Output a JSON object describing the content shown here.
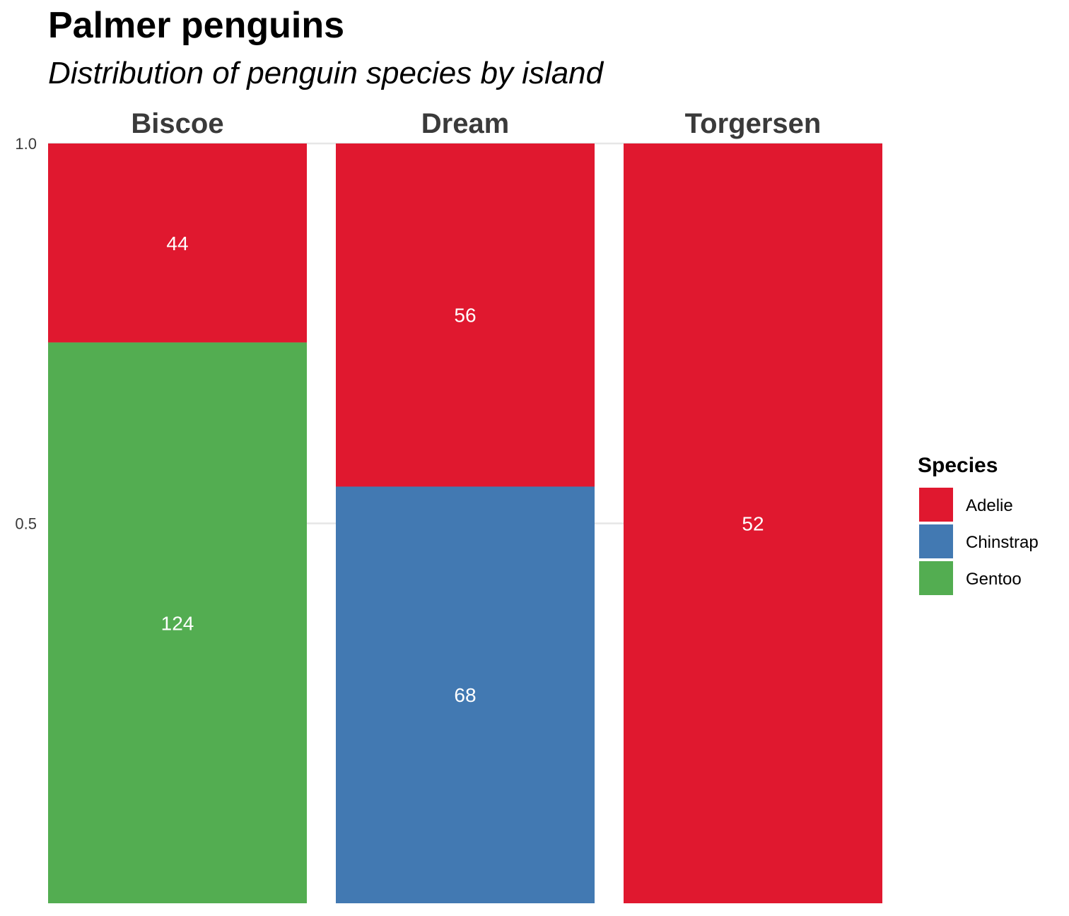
{
  "chart_data": {
    "type": "bar",
    "layout": "faceted stacked proportions",
    "title": "Palmer penguins",
    "subtitle": "Distribution of penguin species by island",
    "facets": [
      "Biscoe",
      "Dream",
      "Torgersen"
    ],
    "species": [
      "Adelie",
      "Chinstrap",
      "Gentoo"
    ],
    "colors": {
      "Adelie": "#E0182F",
      "Chinstrap": "#4279B2",
      "Gentoo": "#53AD51"
    },
    "counts": {
      "Biscoe": {
        "Adelie": 44,
        "Gentoo": 124
      },
      "Dream": {
        "Adelie": 56,
        "Chinstrap": 68
      },
      "Torgersen": {
        "Adelie": 52
      }
    },
    "stack_order_top_to_bottom": [
      "Adelie",
      "Chinstrap",
      "Gentoo"
    ],
    "ylim": [
      0,
      1
    ],
    "y_ticks": [
      {
        "value": 0.5,
        "label": "0.5"
      },
      {
        "value": 1.0,
        "label": "1.0"
      }
    ],
    "legend": {
      "title": "Species",
      "position": "right"
    },
    "grid": true
  }
}
